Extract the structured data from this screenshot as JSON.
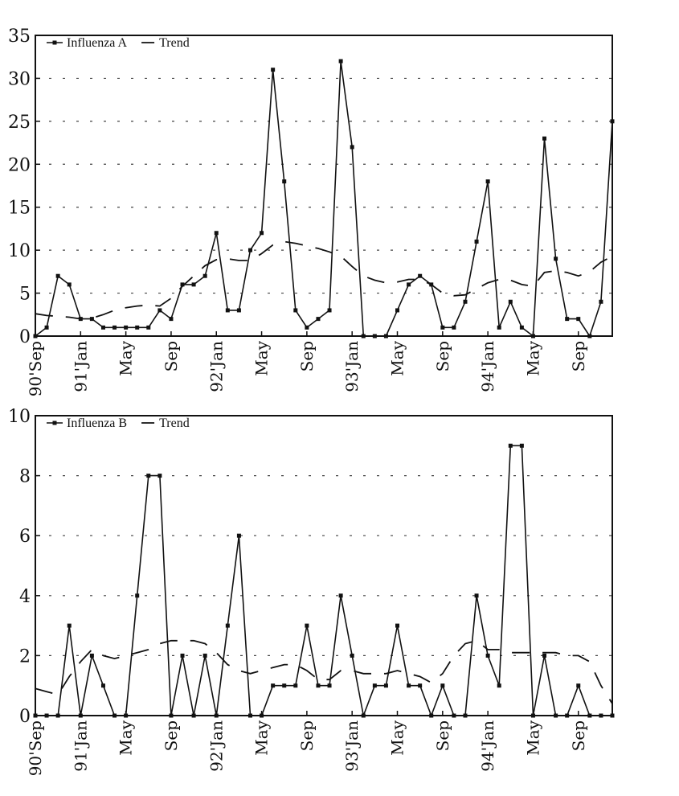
{
  "chart_data": [
    {
      "type": "line",
      "title": "",
      "xlabel": "",
      "ylabel": "",
      "ylim": [
        0,
        35
      ],
      "yticks": [
        "0",
        "5",
        "10",
        "15",
        "20",
        "25",
        "30",
        "35"
      ],
      "grid": true,
      "legend_position": "top-left",
      "x_tick_labels": [
        {
          "label": "90'Sep",
          "x": 0
        },
        {
          "label": "91'Jan",
          "x": 4
        },
        {
          "label": "May",
          "x": 8
        },
        {
          "label": "Sep",
          "x": 12
        },
        {
          "label": "92'Jan",
          "x": 16
        },
        {
          "label": "May",
          "x": 20
        },
        {
          "label": "Sep",
          "x": 24
        },
        {
          "label": "93'Jan",
          "x": 28
        },
        {
          "label": "May",
          "x": 32
        },
        {
          "label": "Sep",
          "x": 36
        },
        {
          "label": "94'Jan",
          "x": 40
        },
        {
          "label": "May",
          "x": 44
        },
        {
          "label": "Sep",
          "x": 48
        }
      ],
      "x_max": 51,
      "series": [
        {
          "name": "Influenza A",
          "style": "line-markers",
          "values": [
            0,
            1,
            7,
            6,
            2,
            2,
            1,
            1,
            1,
            1,
            1,
            3,
            2,
            6,
            6,
            7,
            12,
            3,
            3,
            10,
            12,
            31,
            18,
            3,
            1,
            2,
            3,
            32,
            22,
            0,
            0,
            0,
            3,
            6,
            7,
            6,
            1,
            1,
            4,
            11,
            18,
            1,
            4,
            1,
            0,
            23,
            9,
            2,
            2,
            0,
            4,
            25
          ]
        },
        {
          "name": "Trend",
          "style": "dashed",
          "values": [
            2.6,
            2.4,
            2.3,
            2.2,
            2.0,
            2.1,
            2.5,
            3.0,
            3.3,
            3.5,
            3.6,
            3.5,
            4.4,
            5.8,
            7.0,
            8.2,
            8.9,
            9.0,
            8.8,
            8.8,
            9.6,
            10.6,
            11.0,
            10.8,
            10.5,
            10.2,
            9.8,
            9.3,
            8.1,
            7.0,
            6.5,
            6.2,
            6.3,
            6.6,
            6.6,
            6.0,
            5.0,
            4.7,
            4.8,
            5.5,
            6.2,
            6.6,
            6.5,
            6.0,
            5.8,
            7.4,
            7.6,
            7.4,
            7.0,
            7.5,
            8.6,
            9.3
          ]
        }
      ]
    },
    {
      "type": "line",
      "title": "",
      "xlabel": "",
      "ylabel": "",
      "ylim": [
        0,
        10
      ],
      "yticks": [
        "0",
        "2",
        "4",
        "6",
        "8",
        "10"
      ],
      "grid": true,
      "legend_position": "top-left",
      "x_tick_labels": [
        {
          "label": "90'Sep",
          "x": 0
        },
        {
          "label": "91'Jan",
          "x": 4
        },
        {
          "label": "May",
          "x": 8
        },
        {
          "label": "Sep",
          "x": 12
        },
        {
          "label": "92'Jan",
          "x": 16
        },
        {
          "label": "May",
          "x": 20
        },
        {
          "label": "Sep",
          "x": 24
        },
        {
          "label": "93'Jan",
          "x": 28
        },
        {
          "label": "May",
          "x": 32
        },
        {
          "label": "Sep",
          "x": 36
        },
        {
          "label": "94'Jan",
          "x": 40
        },
        {
          "label": "May",
          "x": 44
        },
        {
          "label": "Sep",
          "x": 48
        }
      ],
      "x_max": 51,
      "series": [
        {
          "name": "Influenza B",
          "style": "line-markers",
          "values": [
            0,
            0,
            0,
            3,
            0,
            2,
            1,
            0,
            0,
            4,
            8,
            8,
            0,
            2,
            0,
            2,
            0,
            3,
            6,
            0,
            0,
            1,
            1,
            1,
            3,
            1,
            1,
            4,
            2,
            0,
            1,
            1,
            3,
            1,
            1,
            0,
            1,
            0,
            0,
            4,
            2,
            1,
            9,
            9,
            0,
            2,
            0,
            0,
            1,
            0,
            0,
            0
          ]
        },
        {
          "name": "Trend",
          "style": "dashed",
          "values": [
            0.9,
            0.8,
            0.7,
            1.3,
            1.8,
            2.2,
            2.0,
            1.9,
            2.0,
            2.1,
            2.2,
            2.4,
            2.5,
            2.5,
            2.5,
            2.4,
            2.1,
            1.7,
            1.5,
            1.4,
            1.5,
            1.6,
            1.7,
            1.7,
            1.5,
            1.2,
            1.2,
            1.5,
            1.5,
            1.4,
            1.4,
            1.4,
            1.5,
            1.4,
            1.3,
            1.1,
            1.4,
            2.0,
            2.4,
            2.5,
            2.2,
            2.2,
            2.1,
            2.1,
            2.1,
            2.1,
            2.1,
            2.0,
            2.0,
            1.8,
            1.0,
            0.4
          ]
        }
      ]
    }
  ]
}
